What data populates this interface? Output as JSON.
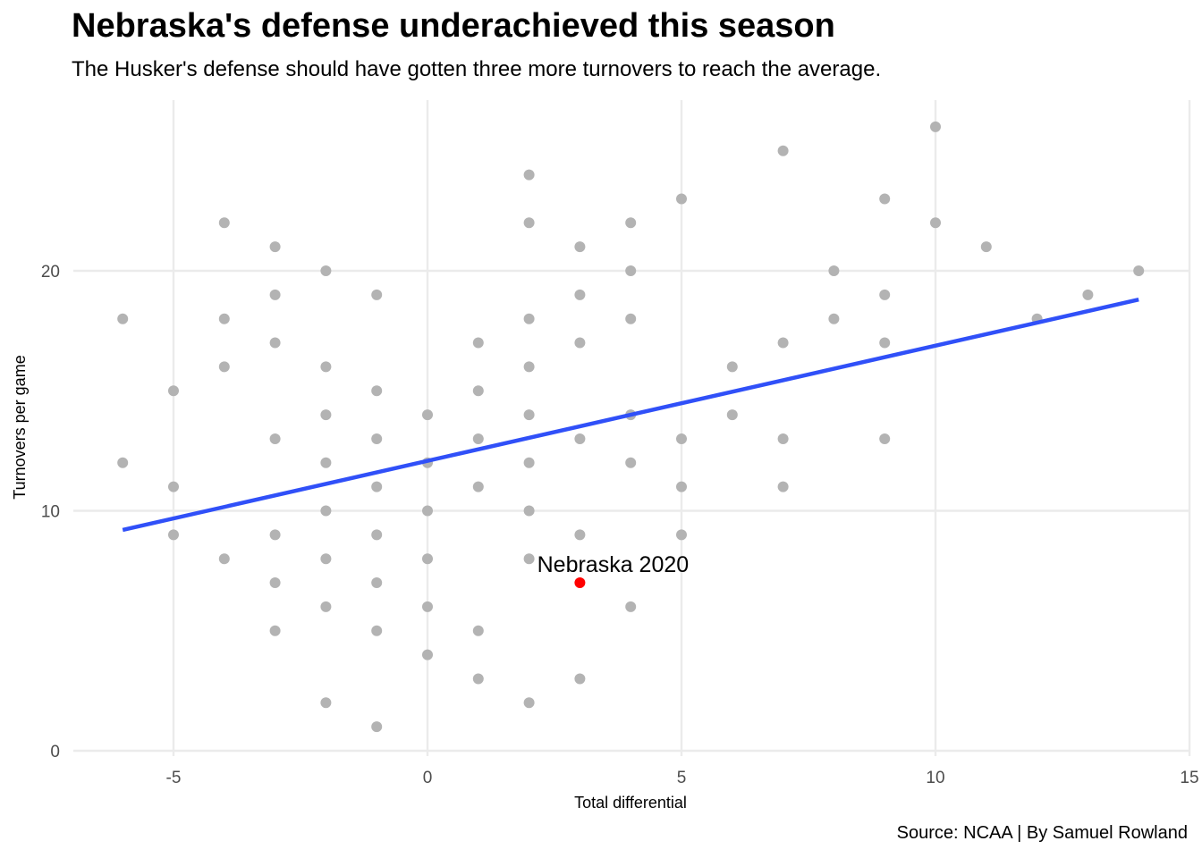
{
  "title": "Nebraska's defense underachieved this season",
  "subtitle": "The Husker's defense should have gotten three more turnovers to reach the average.",
  "caption": "Source: NCAA | By Samuel Rowland",
  "colors": {
    "points": "#b3b3b3",
    "highlight": "#ff0000",
    "fit_line": "#3050f8",
    "grid": "#ebebeb"
  },
  "chart_data": {
    "type": "scatter",
    "xlabel": "Total differential",
    "ylabel": "Turnovers per game",
    "xlim": [
      -6.5,
      15
    ],
    "ylim": [
      0,
      26.5
    ],
    "x_ticks": [
      -5,
      0,
      5,
      10,
      15
    ],
    "x_tick_labels": [
      "-5",
      "0",
      "5",
      "10",
      "15"
    ],
    "y_ticks": [
      0,
      10,
      20
    ],
    "y_tick_labels": [
      "0",
      "10",
      "20"
    ],
    "grid": true,
    "series": [
      {
        "points": [
          [
            -6,
            18
          ],
          [
            -6,
            12
          ],
          [
            -5,
            15
          ],
          [
            -5,
            11
          ],
          [
            -5,
            9
          ],
          [
            -4,
            22
          ],
          [
            -4,
            18
          ],
          [
            -4,
            16
          ],
          [
            -4,
            8
          ],
          [
            -3,
            21
          ],
          [
            -3,
            19
          ],
          [
            -3,
            17
          ],
          [
            -3,
            13
          ],
          [
            -3,
            9
          ],
          [
            -3,
            7
          ],
          [
            -3,
            5
          ],
          [
            -2,
            20
          ],
          [
            -2,
            16
          ],
          [
            -2,
            14
          ],
          [
            -2,
            12
          ],
          [
            -2,
            10
          ],
          [
            -2,
            8
          ],
          [
            -2,
            6
          ],
          [
            -2,
            2
          ],
          [
            -1,
            19
          ],
          [
            -1,
            15
          ],
          [
            -1,
            13
          ],
          [
            -1,
            11
          ],
          [
            -1,
            9
          ],
          [
            -1,
            7
          ],
          [
            -1,
            5
          ],
          [
            -1,
            1
          ],
          [
            0,
            14
          ],
          [
            0,
            12
          ],
          [
            0,
            10
          ],
          [
            0,
            8
          ],
          [
            0,
            6
          ],
          [
            0,
            4
          ],
          [
            1,
            17
          ],
          [
            1,
            15
          ],
          [
            1,
            13
          ],
          [
            1,
            11
          ],
          [
            1,
            5
          ],
          [
            1,
            3
          ],
          [
            2,
            24
          ],
          [
            2,
            22
          ],
          [
            2,
            18
          ],
          [
            2,
            16
          ],
          [
            2,
            14
          ],
          [
            2,
            12
          ],
          [
            2,
            10
          ],
          [
            2,
            8
          ],
          [
            2,
            2
          ],
          [
            3,
            21
          ],
          [
            3,
            19
          ],
          [
            3,
            17
          ],
          [
            3,
            13
          ],
          [
            3,
            9
          ],
          [
            3,
            3
          ],
          [
            4,
            22
          ],
          [
            4,
            20
          ],
          [
            4,
            18
          ],
          [
            4,
            14
          ],
          [
            4,
            12
          ],
          [
            4,
            6
          ],
          [
            5,
            23
          ],
          [
            5,
            13
          ],
          [
            5,
            11
          ],
          [
            5,
            9
          ],
          [
            6,
            16
          ],
          [
            6,
            14
          ],
          [
            7,
            25
          ],
          [
            7,
            17
          ],
          [
            7,
            13
          ],
          [
            7,
            11
          ],
          [
            8,
            20
          ],
          [
            8,
            18
          ],
          [
            9,
            23
          ],
          [
            9,
            19
          ],
          [
            9,
            17
          ],
          [
            9,
            13
          ],
          [
            10,
            26
          ],
          [
            10,
            22
          ],
          [
            11,
            21
          ],
          [
            12,
            18
          ],
          [
            13,
            19
          ],
          [
            14,
            20
          ]
        ]
      }
    ],
    "highlight": {
      "label": "Nebraska 2020",
      "x": 3,
      "y": 7
    },
    "fit_line": {
      "x": [
        -6,
        14
      ],
      "y": [
        9.2,
        18.8
      ]
    }
  }
}
